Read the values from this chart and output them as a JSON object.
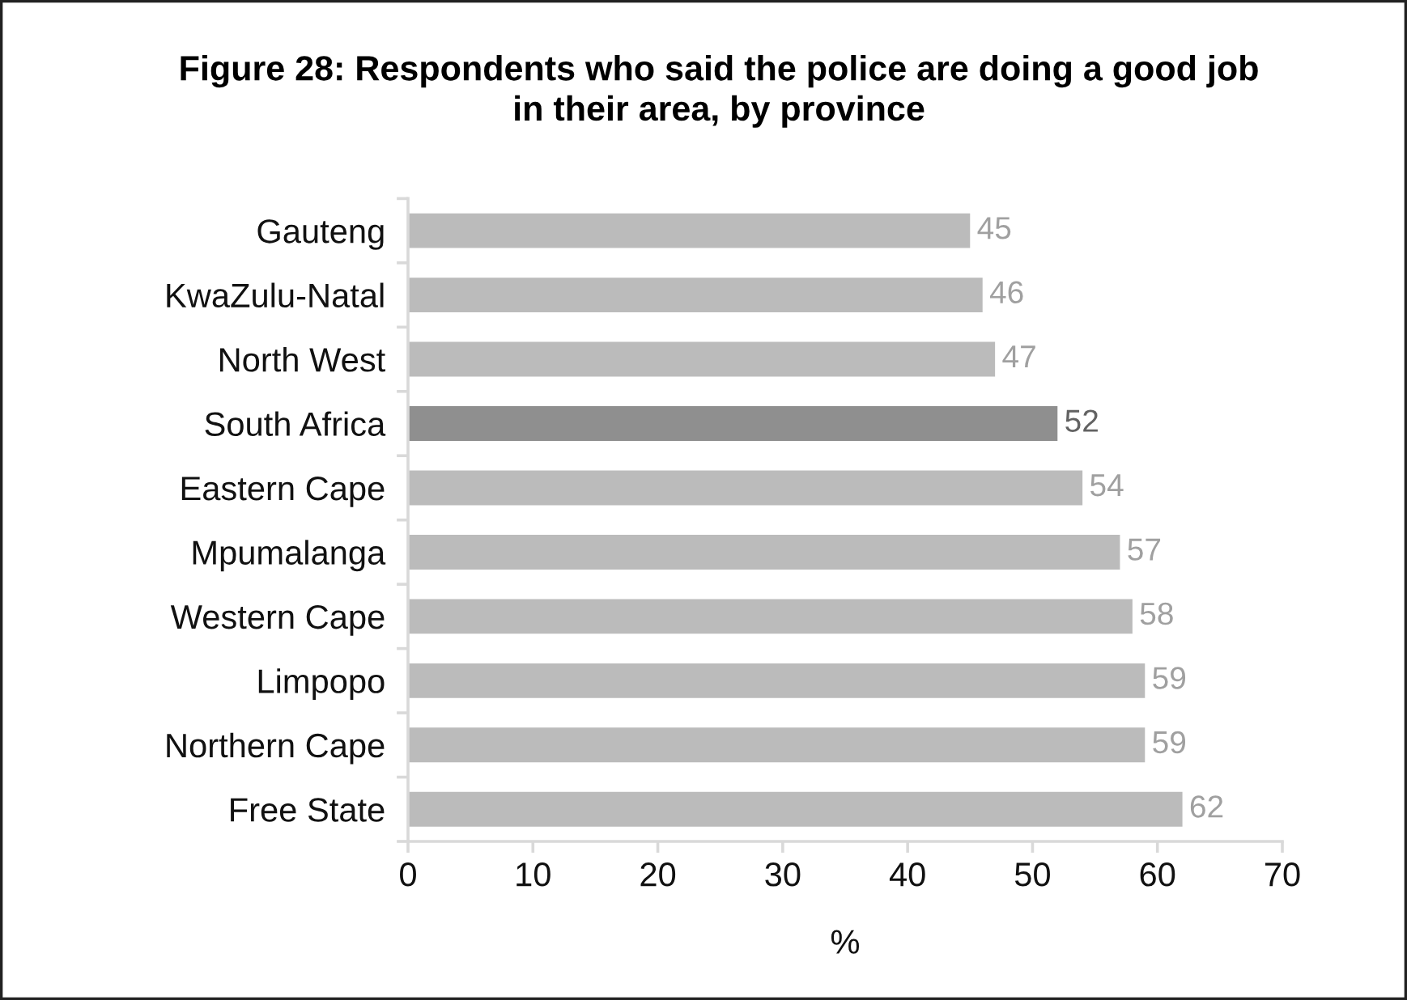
{
  "chart_data": {
    "type": "bar",
    "orientation": "horizontal",
    "title": "Figure 28: Respondents who said the police are doing a good job in their area, by province",
    "xlabel": "%",
    "categories": [
      "Gauteng",
      "KwaZulu-Natal",
      "North West",
      "South Africa",
      "Eastern Cape",
      "Mpumalanga",
      "Western Cape",
      "Limpopo",
      "Northern Cape",
      "Free State"
    ],
    "values": [
      45,
      46,
      47,
      52,
      54,
      57,
      58,
      59,
      59,
      62
    ],
    "colors": [
      "#bbbbbb",
      "#bbbbbb",
      "#bbbbbb",
      "#8f8f8f",
      "#bbbbbb",
      "#bbbbbb",
      "#bbbbbb",
      "#bbbbbb",
      "#bbbbbb",
      "#bbbbbb"
    ],
    "xlim": [
      0,
      70
    ],
    "xticks": [
      0,
      10,
      20,
      30,
      40,
      50,
      60,
      70
    ],
    "data_labels": true
  }
}
